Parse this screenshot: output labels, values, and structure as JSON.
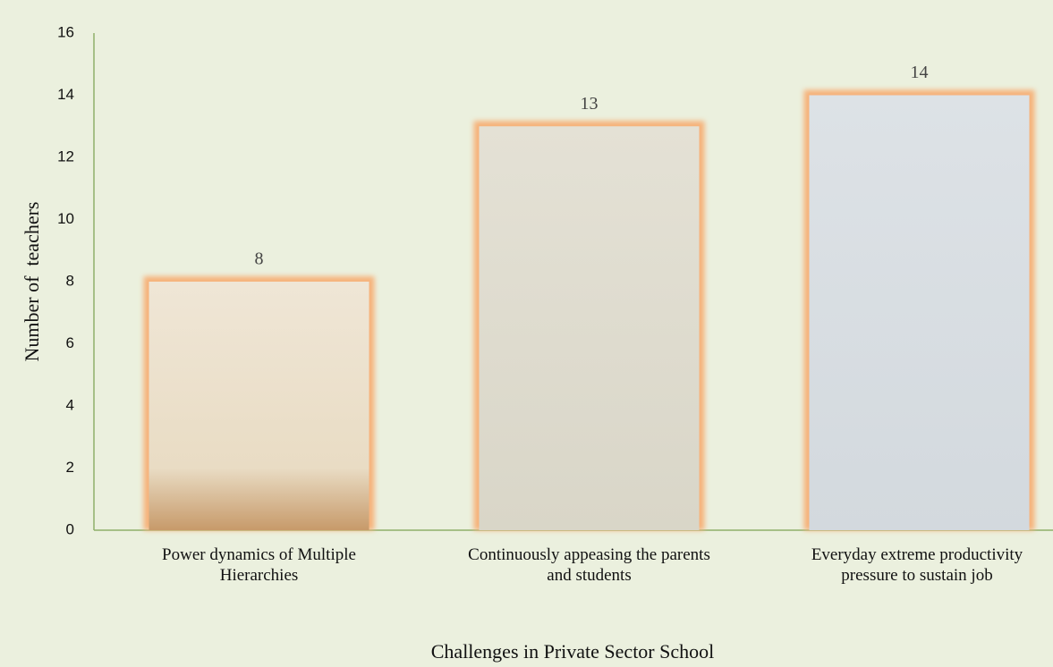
{
  "chart_data": {
    "type": "bar",
    "x_label": "Challenges in Private Sector School",
    "y_label": "Number of  teachers",
    "categories": [
      "Power dynamics of Multiple Hierarchies",
      "Continuously appeasing the parents and students",
      "Everyday extreme productivity pressure to sustain job"
    ],
    "values": [
      8,
      13,
      14
    ],
    "color": "#f6b27a",
    "ylim": [
      0,
      16
    ],
    "yticks": [
      0,
      2,
      4,
      6,
      8,
      10,
      12,
      14,
      16
    ],
    "grid": false
  }
}
